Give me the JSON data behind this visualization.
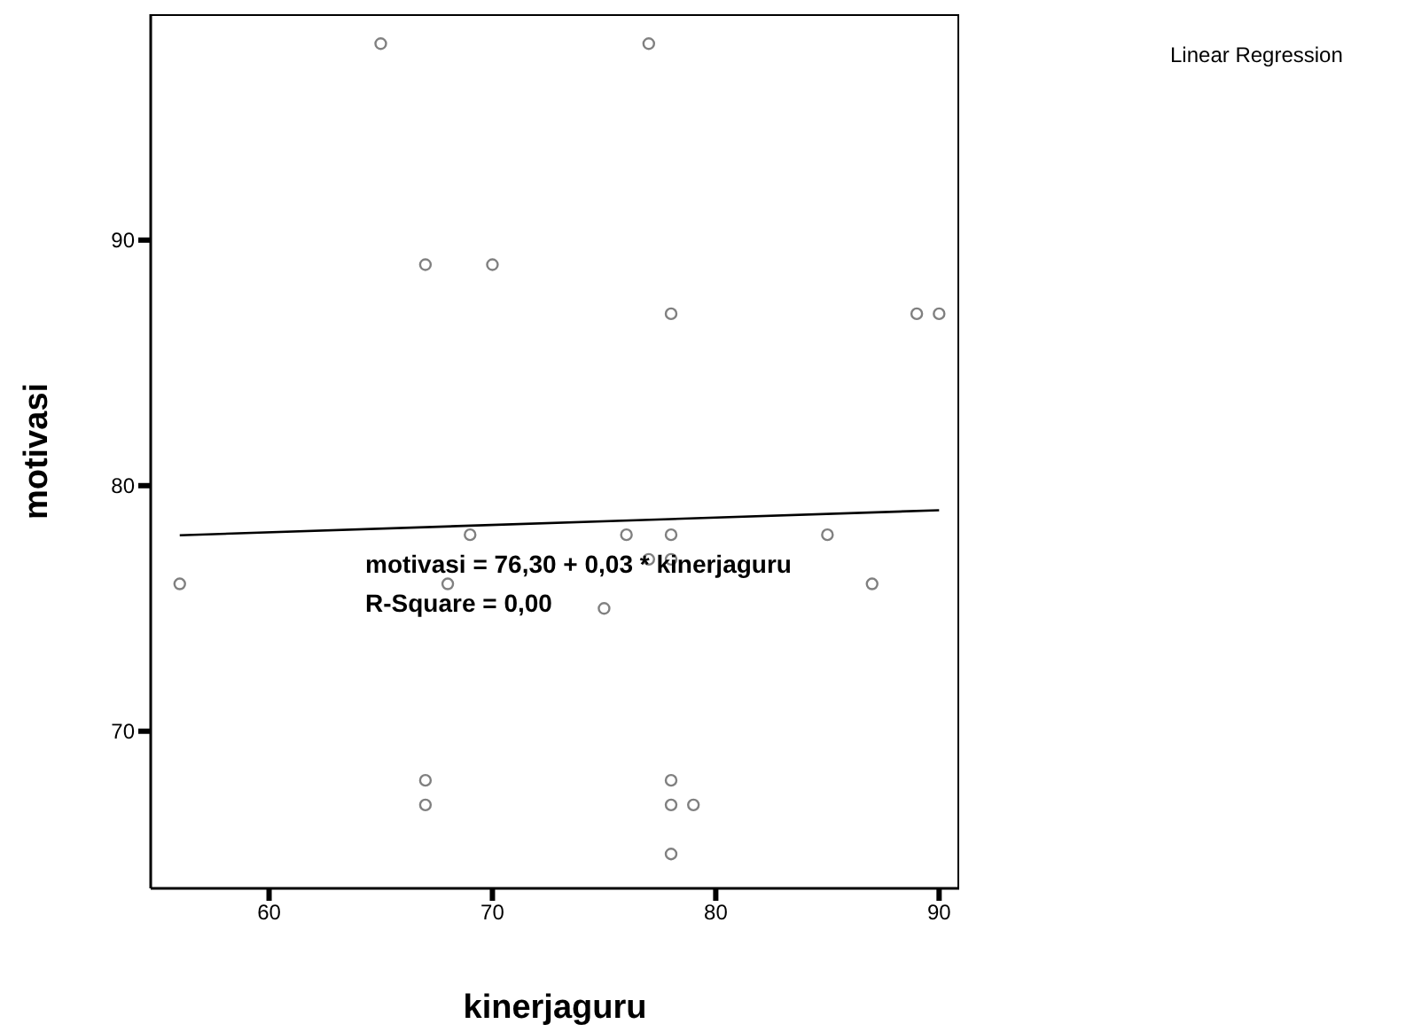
{
  "chart_data": {
    "type": "scatter",
    "xlabel": "kinerjaguru",
    "ylabel": "motivasi",
    "xlim": [
      54.7,
      90.9
    ],
    "ylim": [
      63.6,
      99.2
    ],
    "xticks": [
      60,
      70,
      80,
      90
    ],
    "yticks": [
      70,
      80,
      90
    ],
    "grid": false,
    "legend": false,
    "marker": "circle",
    "annotations": [
      "motivasi = 76,30 + 0,03 * kinerjaguru",
      "R-Square = 0,00",
      "Linear Regression"
    ],
    "series": [
      {
        "color": "#808080",
        "x": [
          65,
          77,
          67,
          70,
          78,
          89,
          90,
          69,
          76,
          78,
          85,
          77,
          78,
          56,
          68,
          75,
          87,
          67,
          67,
          78,
          78,
          79,
          78
        ],
        "values": [
          98,
          98,
          89,
          89,
          87,
          87,
          87,
          78,
          78,
          78,
          78,
          77,
          77,
          76,
          76,
          75,
          76,
          68,
          67,
          68,
          67,
          67,
          65
        ]
      },
      {
        "type": "line",
        "color": "#000000",
        "marker": "none",
        "x": [
          56,
          90
        ],
        "values": [
          77.98,
          79.0
        ]
      }
    ]
  }
}
